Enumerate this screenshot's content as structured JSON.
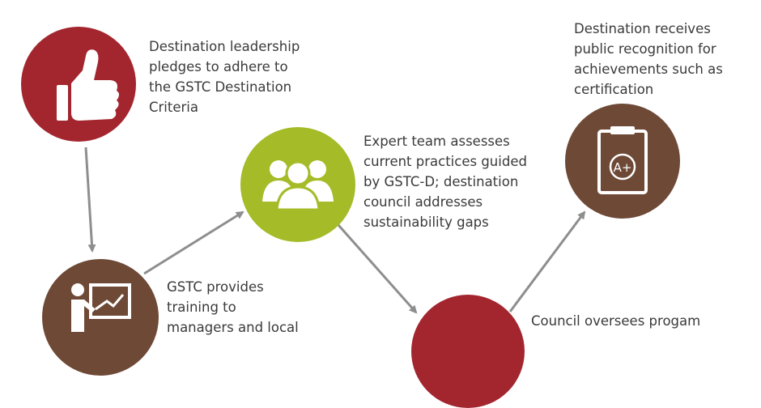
{
  "colors": {
    "red": "#a3262f",
    "brown": "#6e4936",
    "green": "#a5bb27",
    "arrow": "#8e8e8e",
    "text": "#3a3a3a"
  },
  "steps": [
    {
      "id": "pledge",
      "color": "red",
      "icon": "thumbs-up-icon",
      "text": "Destination leadership\npledges to adhere to\nthe GSTC Destination\nCriteria"
    },
    {
      "id": "training",
      "color": "brown",
      "icon": "teacher-board-icon",
      "text": "GSTC provides\ntraining to\nmanagers and local"
    },
    {
      "id": "assessment",
      "color": "green",
      "icon": "team-icon",
      "text": "Expert team assesses\ncurrent practices guided\nby GSTC-D; destination\ncouncil addresses\nsustainability gaps"
    },
    {
      "id": "oversight",
      "color": "red",
      "icon": "",
      "text": "Council oversees  progam"
    },
    {
      "id": "recognition",
      "color": "brown",
      "icon": "clipboard-grade-icon",
      "text": "Destination receives\npublic recognition for\nachievements such as\ncertification"
    }
  ],
  "icon_text": {
    "grade": "A+"
  }
}
